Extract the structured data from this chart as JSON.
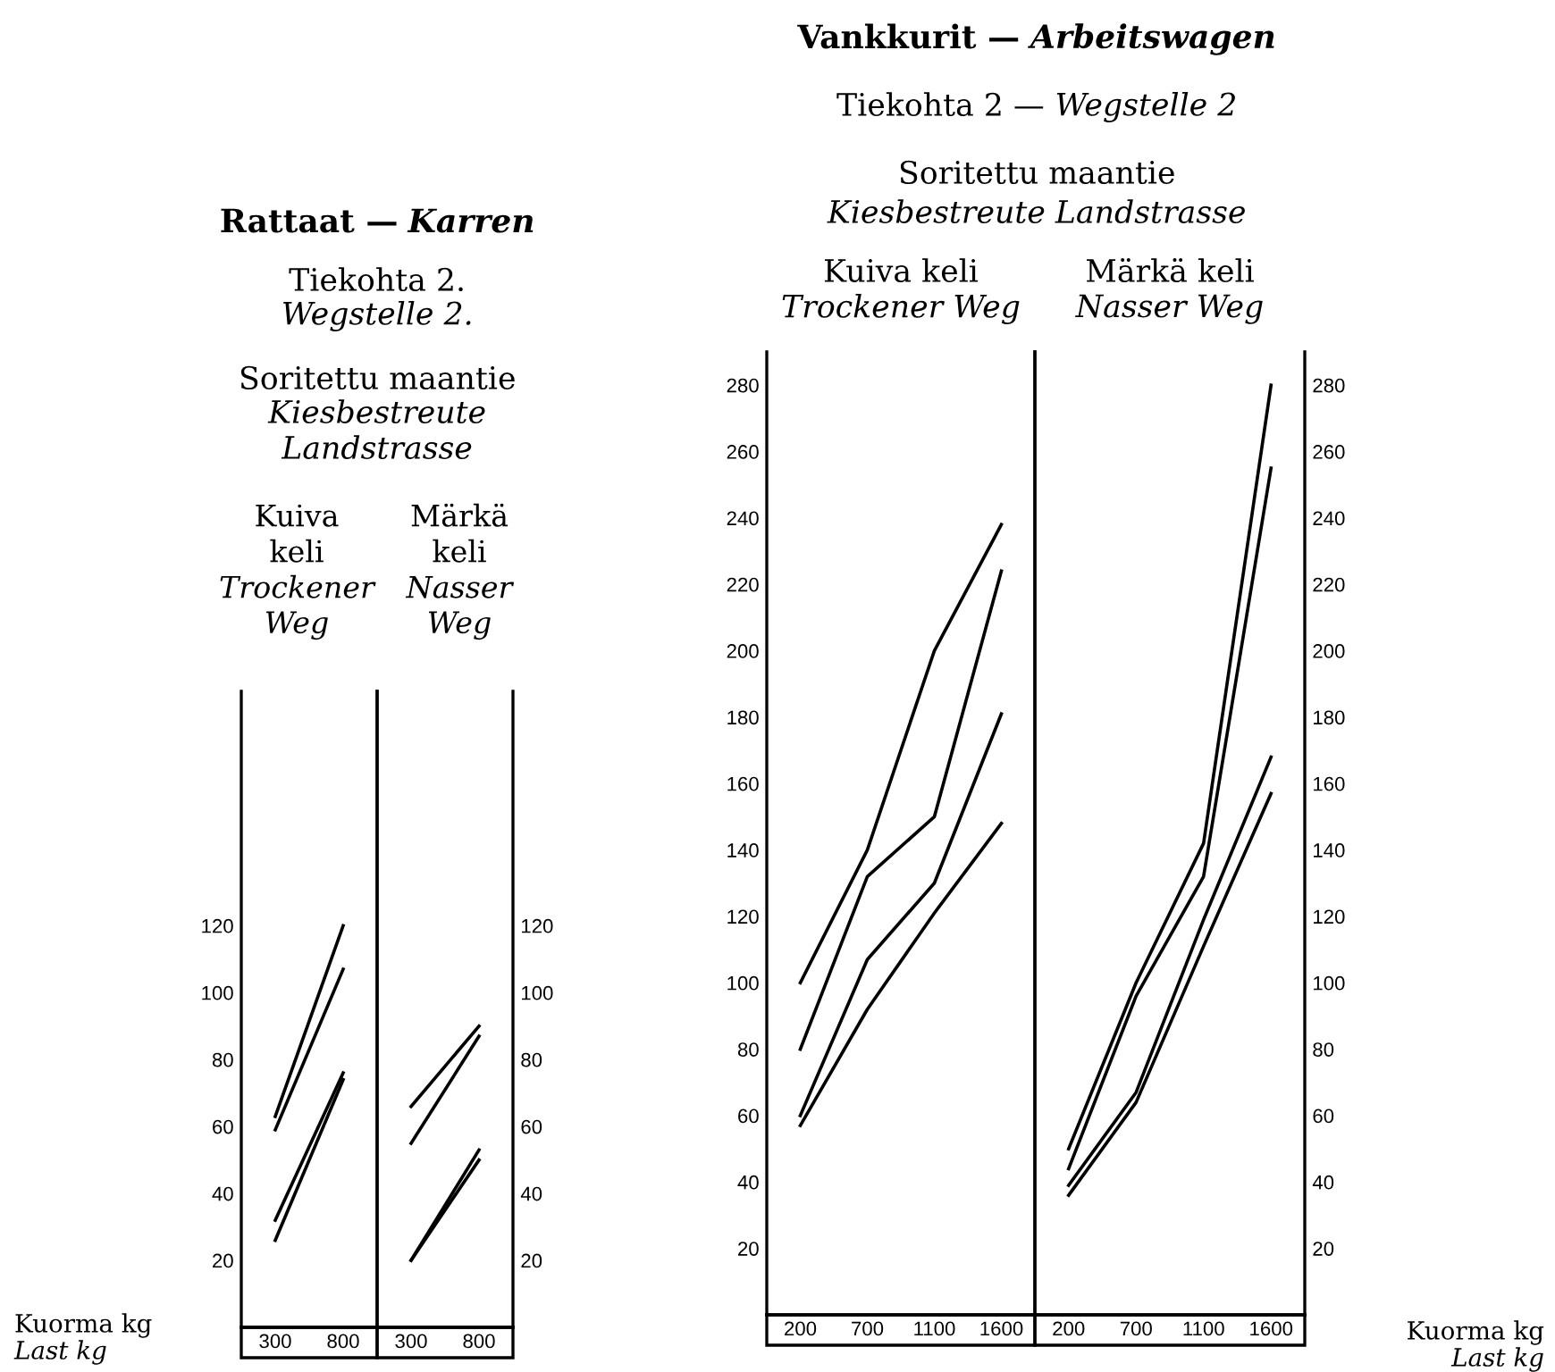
{
  "chart_data": [
    {
      "type": "line",
      "title": "Kuiva\nkeli",
      "subtitle": "Trockener\nWeg",
      "xlabel": "Kuorma kg\nLast kg",
      "annotations": [
        "Rattaat —",
        "Karren",
        "Tiekohta 2.",
        "Wegstelle 2.",
        "Soritettu maantie",
        "Kiesbestreute",
        "Landstrasse"
      ],
      "categories": [
        "300",
        "800"
      ],
      "ylim": [
        0,
        190
      ],
      "yticks": [
        20,
        40,
        60,
        80,
        100,
        120
      ],
      "series": [
        {
          "color": "#000000",
          "values": [
            63,
            120
          ]
        },
        {
          "color": "#000000",
          "values": [
            59,
            107
          ]
        },
        {
          "color": "#000000",
          "values": [
            32,
            76
          ]
        },
        {
          "color": "#000000",
          "values": [
            26,
            74
          ]
        }
      ]
    },
    {
      "type": "line",
      "title": "Märkä\nkeli",
      "subtitle": "Nasser\nWeg",
      "categories": [
        "300",
        "800"
      ],
      "y2lim": [
        0,
        190
      ],
      "y2ticks": [
        20,
        40,
        60,
        80,
        100,
        120
      ],
      "series": [
        {
          "color": "#000000",
          "axis": "y2",
          "values": [
            66,
            90
          ]
        },
        {
          "color": "#000000",
          "axis": "y2",
          "values": [
            55,
            87
          ]
        },
        {
          "color": "#000000",
          "axis": "y2",
          "values": [
            20,
            53
          ]
        },
        {
          "color": "#000000",
          "axis": "y2",
          "values": [
            20,
            50
          ]
        }
      ]
    },
    {
      "type": "line",
      "title": "Kuiva keli",
      "subtitle": "Trockener Weg",
      "annotations": [
        "Vankkurit —",
        "Arbeitswagen",
        "Tiekohta 2 —",
        "Wegstelle 2",
        "Soritettu maantie",
        "Kiesbestreute Landstrasse"
      ],
      "categories": [
        "200",
        "700",
        "1100",
        "1600"
      ],
      "ylim": [
        0,
        290
      ],
      "yticks": [
        20,
        40,
        60,
        80,
        100,
        120,
        140,
        160,
        180,
        200,
        220,
        240,
        260,
        280
      ],
      "series": [
        {
          "color": "#000000",
          "values": [
            100,
            140,
            200,
            238
          ]
        },
        {
          "color": "#000000",
          "values": [
            80,
            132,
            150,
            224
          ]
        },
        {
          "color": "#000000",
          "values": [
            60,
            107,
            130,
            181
          ]
        },
        {
          "color": "#000000",
          "values": [
            57,
            92,
            121,
            148
          ]
        }
      ]
    },
    {
      "type": "line",
      "title": "Märkä keli",
      "subtitle": "Nasser Weg",
      "xlabel": "Kuorma kg\nLast kg",
      "categories": [
        "200",
        "700",
        "1100",
        "1600"
      ],
      "y2lim": [
        0,
        290
      ],
      "y2ticks": [
        20,
        40,
        60,
        80,
        100,
        120,
        140,
        160,
        180,
        200,
        220,
        240,
        260,
        280
      ],
      "series": [
        {
          "color": "#000000",
          "axis": "y2",
          "values": [
            50,
            100,
            142,
            280
          ]
        },
        {
          "color": "#000000",
          "axis": "y2",
          "values": [
            44,
            96,
            132,
            255
          ]
        },
        {
          "color": "#000000",
          "axis": "y2",
          "values": [
            39,
            67,
            119,
            168
          ]
        },
        {
          "color": "#000000",
          "axis": "y2",
          "values": [
            36,
            64,
            111,
            157
          ]
        }
      ]
    }
  ]
}
